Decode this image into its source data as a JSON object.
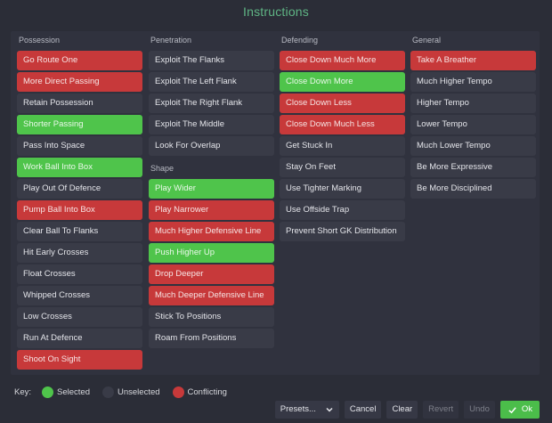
{
  "window": {
    "title": "Instructions"
  },
  "colors": {
    "selected": "#4fc44b",
    "unselected": "#393b47",
    "conflicting": "#c7393a",
    "title": "#5fb484"
  },
  "columns": [
    {
      "header": "Possession",
      "items": [
        {
          "label": "Go Route One",
          "state": "conflicting"
        },
        {
          "label": "More Direct Passing",
          "state": "conflicting"
        },
        {
          "label": "Retain Possession",
          "state": "unselected"
        },
        {
          "label": "Shorter Passing",
          "state": "selected"
        },
        {
          "label": "Pass Into Space",
          "state": "unselected"
        },
        {
          "label": "Work Ball Into Box",
          "state": "selected"
        },
        {
          "label": "Play Out Of Defence",
          "state": "unselected"
        },
        {
          "label": "Pump Ball Into Box",
          "state": "conflicting"
        },
        {
          "label": "Clear Ball To Flanks",
          "state": "unselected"
        },
        {
          "label": "Hit Early Crosses",
          "state": "unselected"
        },
        {
          "label": "Float Crosses",
          "state": "unselected"
        },
        {
          "label": "Whipped Crosses",
          "state": "unselected"
        },
        {
          "label": "Low Crosses",
          "state": "unselected"
        },
        {
          "label": "Run At Defence",
          "state": "unselected"
        },
        {
          "label": "Shoot On Sight",
          "state": "conflicting"
        }
      ]
    },
    {
      "header": "Penetration",
      "items": [
        {
          "label": "Exploit The Flanks",
          "state": "unselected"
        },
        {
          "label": "Exploit The Left Flank",
          "state": "unselected"
        },
        {
          "label": "Exploit The Right Flank",
          "state": "unselected"
        },
        {
          "label": "Exploit The Middle",
          "state": "unselected"
        },
        {
          "label": "Look For Overlap",
          "state": "unselected"
        }
      ],
      "subsection": {
        "header": "Shape",
        "items": [
          {
            "label": "Play Wider",
            "state": "selected"
          },
          {
            "label": "Play Narrower",
            "state": "conflicting"
          },
          {
            "label": "Much Higher Defensive Line",
            "state": "conflicting"
          },
          {
            "label": "Push Higher Up",
            "state": "selected"
          },
          {
            "label": "Drop Deeper",
            "state": "conflicting"
          },
          {
            "label": "Much Deeper Defensive Line",
            "state": "conflicting"
          },
          {
            "label": "Stick To Positions",
            "state": "unselected"
          },
          {
            "label": "Roam From Positions",
            "state": "unselected"
          }
        ]
      }
    },
    {
      "header": "Defending",
      "items": [
        {
          "label": "Close Down Much More",
          "state": "conflicting"
        },
        {
          "label": "Close Down More",
          "state": "selected"
        },
        {
          "label": "Close Down Less",
          "state": "conflicting"
        },
        {
          "label": "Close Down Much Less",
          "state": "conflicting"
        },
        {
          "label": "Get Stuck In",
          "state": "unselected"
        },
        {
          "label": "Stay On Feet",
          "state": "unselected"
        },
        {
          "label": "Use Tighter Marking",
          "state": "unselected"
        },
        {
          "label": "Use Offside Trap",
          "state": "unselected"
        },
        {
          "label": "Prevent Short GK Distribution",
          "state": "unselected"
        }
      ]
    },
    {
      "header": "General",
      "items": [
        {
          "label": "Take A Breather",
          "state": "conflicting"
        },
        {
          "label": "Much Higher Tempo",
          "state": "unselected"
        },
        {
          "label": "Higher Tempo",
          "state": "unselected"
        },
        {
          "label": "Lower Tempo",
          "state": "unselected"
        },
        {
          "label": "Much Lower Tempo",
          "state": "unselected"
        },
        {
          "label": "Be More Expressive",
          "state": "unselected"
        },
        {
          "label": "Be More Disciplined",
          "state": "unselected"
        }
      ]
    }
  ],
  "key": {
    "label": "Key:",
    "items": [
      {
        "label": "Selected",
        "color": "#4fc44b"
      },
      {
        "label": "Unselected",
        "color": "#393b47"
      },
      {
        "label": "Conflicting",
        "color": "#c7393a"
      }
    ]
  },
  "footer": {
    "presets_label": "Presets...",
    "presets_icon": "chevron-down-icon",
    "cancel_label": "Cancel",
    "clear_label": "Clear",
    "revert_label": "Revert",
    "undo_label": "Undo",
    "ok_label": "Ok",
    "ok_icon": "check-icon"
  }
}
